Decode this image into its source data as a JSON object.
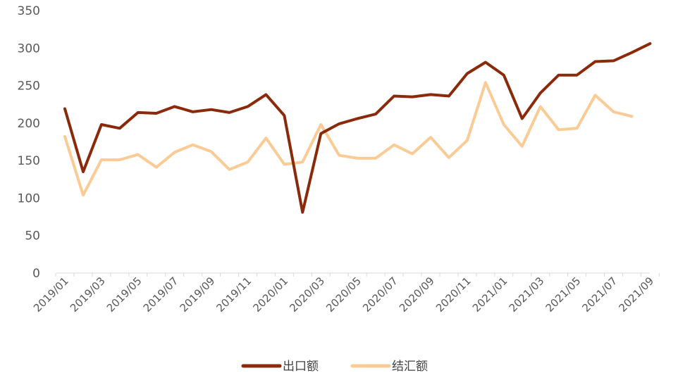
{
  "chart_data": {
    "type": "line",
    "title": "",
    "xlabel": "",
    "ylabel": "",
    "ylim": [
      0,
      350
    ],
    "yticks": [
      0,
      50,
      100,
      150,
      200,
      250,
      300,
      350
    ],
    "x": [
      "2019/01",
      "2019/02",
      "2019/03",
      "2019/04",
      "2019/05",
      "2019/06",
      "2019/07",
      "2019/08",
      "2019/09",
      "2019/10",
      "2019/11",
      "2019/12",
      "2020/01",
      "2020/02",
      "2020/03",
      "2020/04",
      "2020/05",
      "2020/06",
      "2020/07",
      "2020/08",
      "2020/09",
      "2020/10",
      "2020/11",
      "2020/12",
      "2021/01",
      "2021/02",
      "2021/03",
      "2021/04",
      "2021/05",
      "2021/06",
      "2021/07",
      "2021/08",
      "2021/09"
    ],
    "x_tick_labels": [
      "2019/01",
      "2019/03",
      "2019/05",
      "2019/07",
      "2019/09",
      "2019/11",
      "2020/01",
      "2020/03",
      "2020/05",
      "2020/07",
      "2020/09",
      "2020/11",
      "2021/01",
      "2021/03",
      "2021/05",
      "2021/07",
      "2021/09"
    ],
    "grid": false,
    "legend_position": "bottom",
    "series": [
      {
        "name": "出口额",
        "color": "#8B2A0B",
        "values": [
          219,
          135,
          198,
          193,
          214,
          213,
          222,
          215,
          218,
          214,
          222,
          238,
          210,
          81,
          186,
          199,
          206,
          212,
          236,
          235,
          238,
          236,
          266,
          281,
          264,
          206,
          240,
          264,
          264,
          282,
          283,
          294,
          306
        ]
      },
      {
        "name": "结汇额",
        "color": "#FBCB96",
        "values": [
          182,
          104,
          151,
          151,
          158,
          141,
          161,
          171,
          162,
          138,
          148,
          180,
          145,
          148,
          198,
          157,
          153,
          153,
          171,
          159,
          181,
          154,
          177,
          254,
          198,
          169,
          222,
          191,
          193,
          237,
          215,
          209,
          null
        ]
      }
    ]
  }
}
